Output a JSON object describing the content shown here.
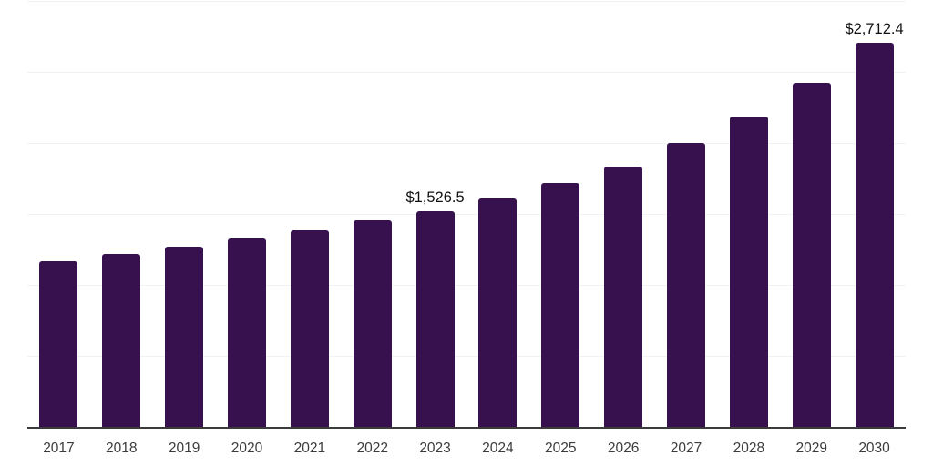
{
  "chart_data": {
    "type": "bar",
    "title": "",
    "xlabel": "",
    "ylabel": "",
    "categories": [
      "2017",
      "2018",
      "2019",
      "2020",
      "2021",
      "2022",
      "2023",
      "2024",
      "2025",
      "2026",
      "2027",
      "2028",
      "2029",
      "2030"
    ],
    "values": [
      1175,
      1222,
      1278,
      1335,
      1393,
      1464,
      1526.5,
      1613,
      1724,
      1842,
      2008,
      2194,
      2431,
      2712.4
    ],
    "data_labels": {
      "2023": "$1,526.5",
      "2030": "$2,712.4"
    },
    "ylim": [
      0,
      3000
    ],
    "gridline_values": [
      500,
      1000,
      1500,
      2000,
      2500,
      3000
    ],
    "grid": "horizontal-only",
    "legend": "none",
    "y_tick_labels_visible": false,
    "colors": {
      "bar": "#36114d",
      "axis_line": "#3b3b3b",
      "gridline": "#f2f2f4",
      "data_label_text": "#111111",
      "tick_label_text": "#3c3c3c",
      "background": "#ffffff"
    }
  }
}
